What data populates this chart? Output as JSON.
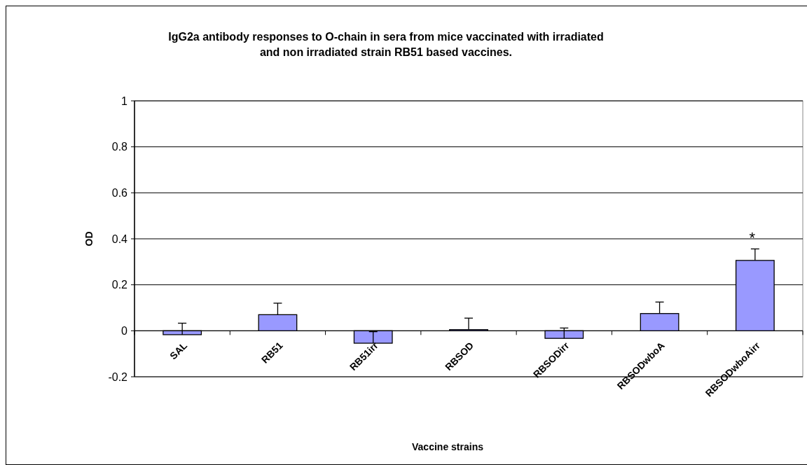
{
  "chart_data": {
    "type": "bar",
    "title": "IgG2a antibody responses to O-chain in sera from mice vaccinated with irradiated and non irradiated strain RB51 based vaccines.",
    "xlabel": "Vaccine strains",
    "ylabel": "OD",
    "categories": [
      "SAL",
      "RB51",
      "RB51irr",
      "RBSOD",
      "RBSODirr",
      "RBSODwboA",
      "RBSODwboAirr"
    ],
    "values": [
      -0.017,
      0.07,
      -0.054,
      0.005,
      -0.033,
      0.075,
      0.306
    ],
    "errors": [
      [
        -0.017,
        0.033
      ],
      [
        0.07,
        0.12
      ],
      [
        -0.054,
        -0.004
      ],
      [
        0.005,
        0.055
      ],
      [
        -0.033,
        0.012
      ],
      [
        0.075,
        0.125
      ],
      [
        0.306,
        0.356
      ]
    ],
    "color": "#9999ff",
    "ylim": [
      -0.2,
      1
    ],
    "yticks": [
      -0.2,
      0,
      0.2,
      0.4,
      0.6,
      0.8,
      1
    ],
    "grid": "y",
    "annotations": [
      "*"
    ]
  }
}
